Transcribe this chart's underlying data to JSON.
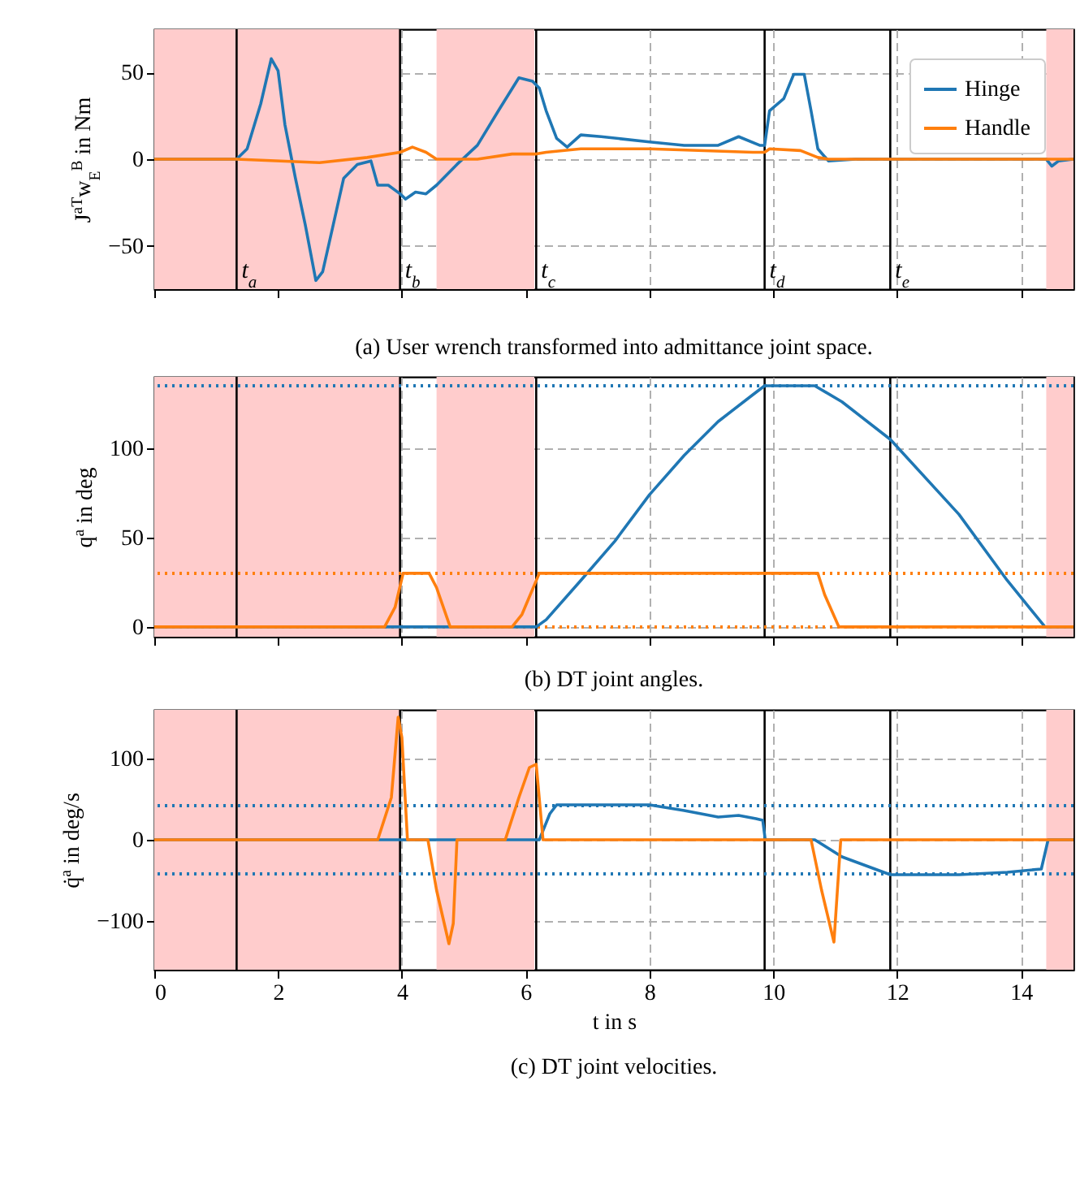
{
  "chart_data": [
    {
      "type": "line",
      "title": "(a) User wrench transformed into admittance joint space.",
      "ylabel": "J$^{aT}$w$_{E}$$^{B}$ in Nm",
      "xlim": [
        0,
        14.85
      ],
      "xticks": [
        0,
        2,
        4,
        6,
        8,
        10,
        12,
        14
      ],
      "ylim": [
        -75,
        75
      ],
      "yticks": [
        -50,
        0,
        50
      ],
      "grid": true,
      "legend": "top right",
      "tick_labels": "y",
      "marker": "none",
      "line_style": "solid",
      "series": [
        {
          "name": "Hinge",
          "color": "#1f77b4",
          "x": [
            0,
            1.33,
            1.5,
            1.72,
            1.89,
            2.0,
            2.11,
            2.28,
            2.44,
            2.61,
            2.72,
            2.89,
            3.06,
            3.28,
            3.5,
            3.61,
            3.78,
            3.97,
            4.06,
            4.22,
            4.39,
            4.56,
            4.89,
            5.22,
            5.56,
            5.89,
            6.11,
            6.22,
            6.33,
            6.5,
            6.67,
            6.89,
            7.22,
            8.0,
            8.56,
            9.11,
            9.44,
            9.78,
            9.86,
            9.94,
            10.17,
            10.33,
            10.5,
            10.61,
            10.72,
            10.89,
            11.33,
            14.41,
            14.5,
            14.61,
            14.85
          ],
          "values": [
            0,
            0,
            6,
            32,
            58,
            51,
            20,
            -11,
            -38,
            -70,
            -65,
            -38,
            -11,
            -3,
            -1,
            -15,
            -15,
            -20,
            -23,
            -19,
            -20,
            -15,
            -3,
            8,
            28,
            47,
            45,
            41,
            28,
            12,
            7,
            14,
            13,
            10,
            8,
            8,
            13,
            8,
            8,
            28,
            35,
            49,
            49,
            28,
            6,
            -1,
            0,
            0,
            -4,
            -1,
            0
          ]
        },
        {
          "name": "Handle",
          "color": "#ff7f0e",
          "x": [
            0,
            1.33,
            2.67,
            3.44,
            3.97,
            4.17,
            4.39,
            4.56,
            5.22,
            5.78,
            6.17,
            6.33,
            6.89,
            8.0,
            9.67,
            9.86,
            9.94,
            10.44,
            10.72,
            10.89,
            14.85
          ],
          "values": [
            0,
            0,
            -2,
            1,
            4,
            7,
            4,
            0,
            0,
            3,
            3,
            4,
            6,
            6,
            4,
            4,
            6,
            5,
            1,
            0,
            0
          ]
        }
      ],
      "bands": [
        {
          "axis": "x",
          "from": 0,
          "to": 3.97,
          "color": "#ffcccc"
        },
        {
          "axis": "x",
          "from": 4.56,
          "to": 6.14,
          "color": "#ffcccc"
        },
        {
          "axis": "x",
          "from": 14.41,
          "to": 14.85,
          "color": "#ffcccc"
        }
      ],
      "ref_lines": [
        {
          "axis": "x",
          "value": 1.33,
          "label": "t$_{a}$",
          "color": "#000000"
        },
        {
          "axis": "x",
          "value": 3.97,
          "label": "t$_{b}$",
          "color": "#000000"
        },
        {
          "axis": "x",
          "value": 6.17,
          "label": "t$_{c}$",
          "color": "#000000"
        },
        {
          "axis": "x",
          "value": 9.86,
          "label": "t$_{d}$",
          "color": "#000000"
        },
        {
          "axis": "x",
          "value": 11.89,
          "label": "t$_{e}$",
          "color": "#000000"
        }
      ]
    },
    {
      "type": "line",
      "title": "(b) DT joint angles.",
      "ylabel": "q$^{a}$ in deg",
      "xlim": [
        0,
        14.85
      ],
      "xticks": [
        0,
        2,
        4,
        6,
        8,
        10,
        12,
        14
      ],
      "ylim": [
        -5.5,
        140
      ],
      "yticks": [
        0,
        50,
        100
      ],
      "grid": true,
      "tick_labels": "y",
      "marker": "none",
      "line_style": "solid",
      "series": [
        {
          "color": "#1f77b4",
          "x": [
            0,
            6.17,
            6.33,
            6.89,
            7.44,
            8.0,
            8.56,
            9.11,
            9.67,
            9.86,
            10.67,
            11.11,
            11.89,
            13.0,
            13.78,
            14.39,
            14.85
          ],
          "values": [
            0,
            0,
            4,
            26,
            48,
            74,
            96,
            115,
            130,
            135,
            135,
            126,
            105,
            63,
            26,
            0,
            0
          ]
        },
        {
          "color": "#ff7f0e",
          "x": [
            0,
            3.72,
            3.89,
            4.02,
            4.44,
            4.56,
            4.78,
            5.78,
            5.94,
            6.22,
            10.72,
            10.83,
            11.06,
            14.85
          ],
          "values": [
            0,
            0,
            11,
            30,
            30,
            22,
            0,
            0,
            7,
            30,
            30,
            18,
            0,
            0
          ]
        }
      ],
      "bands": [
        {
          "axis": "x",
          "from": 0,
          "to": 3.97,
          "color": "#ffcccc"
        },
        {
          "axis": "x",
          "from": 4.56,
          "to": 6.14,
          "color": "#ffcccc"
        },
        {
          "axis": "x",
          "from": 14.41,
          "to": 14.85,
          "color": "#ffcccc"
        }
      ],
      "ref_lines": [
        {
          "axis": "x",
          "value": 1.33,
          "color": "#000000"
        },
        {
          "axis": "x",
          "value": 3.97,
          "color": "#000000"
        },
        {
          "axis": "x",
          "value": 6.17,
          "color": "#000000"
        },
        {
          "axis": "x",
          "value": 9.86,
          "color": "#000000"
        },
        {
          "axis": "x",
          "value": 11.89,
          "color": "#000000"
        },
        {
          "axis": "y",
          "value": 135,
          "color": "#1f77b4",
          "line_style": "dotted"
        },
        {
          "axis": "y",
          "value": 30,
          "color": "#ff7f0e",
          "line_style": "dotted"
        },
        {
          "axis": "y",
          "value": 0,
          "color": "#ff7f0e",
          "line_style": "dotted"
        }
      ]
    },
    {
      "type": "line",
      "title": "(c) DT joint velocities.",
      "xlabel": "t in s",
      "ylabel": "q̇$^{a}$ in deg/s",
      "xlim": [
        0,
        14.85
      ],
      "xticks": [
        0,
        2,
        4,
        6,
        8,
        10,
        12,
        14
      ],
      "ylim": [
        -160,
        160
      ],
      "yticks": [
        -100,
        0,
        100
      ],
      "grid": true,
      "marker": "none",
      "line_style": "solid",
      "series": [
        {
          "color": "#1f77b4",
          "x": [
            0,
            6.22,
            6.39,
            6.5,
            8.0,
            8.56,
            9.11,
            9.44,
            9.72,
            9.83,
            9.87,
            10.67,
            11.11,
            11.89,
            13.0,
            13.78,
            14.33,
            14.44,
            14.85
          ],
          "values": [
            0,
            0,
            32,
            43,
            43,
            36,
            28,
            30,
            26,
            24,
            0,
            0,
            -21,
            -43,
            -43,
            -40,
            -36,
            0,
            0
          ]
        },
        {
          "color": "#ff7f0e",
          "x": [
            0,
            3.61,
            3.83,
            3.94,
            4.0,
            4.09,
            4.42,
            4.56,
            4.76,
            4.83,
            4.89,
            5.67,
            5.89,
            6.06,
            6.17,
            6.28,
            10.61,
            10.78,
            10.98,
            11.09,
            14.85
          ],
          "values": [
            0,
            0,
            52,
            151,
            126,
            0,
            0,
            -62,
            -128,
            -103,
            0,
            0,
            52,
            89,
            93,
            0,
            0,
            -62,
            -126,
            0,
            0
          ]
        }
      ],
      "bands": [
        {
          "axis": "x",
          "from": 0,
          "to": 3.97,
          "color": "#ffcccc"
        },
        {
          "axis": "x",
          "from": 4.56,
          "to": 6.14,
          "color": "#ffcccc"
        },
        {
          "axis": "x",
          "from": 14.41,
          "to": 14.85,
          "color": "#ffcccc"
        }
      ],
      "ref_lines": [
        {
          "axis": "x",
          "value": 1.33,
          "color": "#000000"
        },
        {
          "axis": "x",
          "value": 3.97,
          "color": "#000000"
        },
        {
          "axis": "x",
          "value": 6.17,
          "color": "#000000"
        },
        {
          "axis": "x",
          "value": 9.86,
          "color": "#000000"
        },
        {
          "axis": "x",
          "value": 11.89,
          "color": "#000000"
        },
        {
          "axis": "y",
          "value": 42,
          "color": "#1f77b4",
          "line_style": "dotted"
        },
        {
          "axis": "y",
          "value": -42,
          "color": "#1f77b4",
          "line_style": "dotted"
        }
      ]
    }
  ]
}
